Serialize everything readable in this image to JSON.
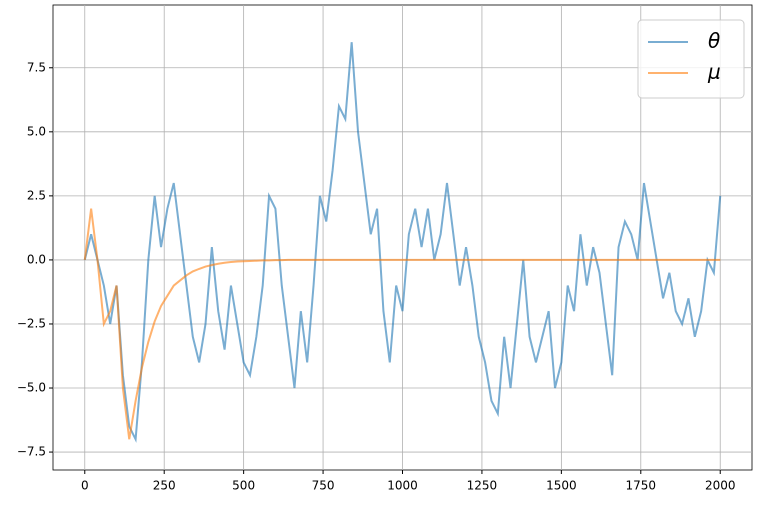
{
  "chart_data": {
    "type": "line",
    "x": [
      0,
      20,
      40,
      60,
      80,
      100,
      120,
      140,
      160,
      180,
      200,
      220,
      240,
      260,
      280,
      300,
      320,
      340,
      360,
      380,
      400,
      420,
      440,
      460,
      480,
      500,
      520,
      540,
      560,
      580,
      600,
      620,
      640,
      660,
      680,
      700,
      720,
      740,
      760,
      780,
      800,
      820,
      840,
      860,
      880,
      900,
      920,
      940,
      960,
      980,
      1000,
      1020,
      1040,
      1060,
      1080,
      1100,
      1120,
      1140,
      1160,
      1180,
      1200,
      1220,
      1240,
      1260,
      1280,
      1300,
      1320,
      1340,
      1360,
      1380,
      1400,
      1420,
      1440,
      1460,
      1480,
      1500,
      1520,
      1540,
      1560,
      1580,
      1600,
      1620,
      1640,
      1660,
      1680,
      1700,
      1720,
      1740,
      1760,
      1780,
      1800,
      1820,
      1840,
      1860,
      1880,
      1900,
      1920,
      1940,
      1960,
      1980,
      2000
    ],
    "series": [
      {
        "name": "θ",
        "color": "#1f77b4",
        "values": [
          0,
          1,
          0,
          -1,
          -2.5,
          -1,
          -4.5,
          -6.5,
          -7,
          -4,
          0,
          2.5,
          0.5,
          2,
          3,
          1,
          -1,
          -3,
          -4,
          -2.5,
          0.5,
          -2,
          -3.5,
          -1,
          -2.5,
          -4,
          -4.5,
          -3,
          -1,
          2.5,
          2,
          -1,
          -3,
          -5,
          -2,
          -4,
          -1,
          2.5,
          1.5,
          3.5,
          6,
          5.5,
          8.5,
          5,
          3,
          1,
          2,
          -2,
          -4,
          -1,
          -2,
          1,
          2,
          0.5,
          2,
          0,
          1,
          3,
          1,
          -1,
          0.5,
          -1,
          -3,
          -4,
          -5.5,
          -6,
          -3,
          -5,
          -2.5,
          0,
          -3,
          -4,
          -3,
          -2,
          -5,
          -4,
          -1,
          -2,
          1,
          -1,
          0.5,
          -0.5,
          -2.5,
          -4.5,
          0.5,
          1.5,
          1,
          0,
          3,
          1.5,
          0,
          -1.5,
          -0.5,
          -2,
          -2.5,
          -1.5,
          -3,
          -2,
          0,
          -0.5,
          2.5
        ]
      },
      {
        "name": "μ",
        "color": "#ff7f0e",
        "values": [
          0,
          2,
          0,
          -2.5,
          -2,
          -1,
          -5,
          -7,
          -5.5,
          -4.2,
          -3.2,
          -2.4,
          -1.8,
          -1.4,
          -1.0,
          -0.8,
          -0.6,
          -0.45,
          -0.35,
          -0.26,
          -0.2,
          -0.15,
          -0.11,
          -0.08,
          -0.06,
          -0.05,
          -0.04,
          -0.03,
          -0.02,
          -0.02,
          -0.01,
          -0.01,
          0,
          0,
          0,
          0,
          0,
          0,
          0,
          0,
          0,
          0,
          0,
          0,
          0,
          0,
          0,
          0,
          0,
          0,
          0,
          0,
          0,
          0,
          0,
          0,
          0,
          0,
          0,
          0,
          0,
          0,
          0,
          0,
          0,
          0,
          0,
          0,
          0,
          0,
          0,
          0,
          0,
          0,
          0,
          0,
          0,
          0,
          0,
          0,
          0,
          0,
          0,
          0,
          0,
          0,
          0,
          0,
          0,
          0,
          0,
          0,
          0,
          0,
          0,
          0,
          0,
          0,
          0,
          0,
          0
        ]
      }
    ],
    "xlim": [
      -100,
      2100
    ],
    "xticks": [
      0,
      250,
      500,
      750,
      1000,
      1250,
      1500,
      1750,
      2000
    ],
    "ylim": [
      -8.2,
      9.95
    ],
    "yticks": [
      {
        "value": -7.5,
        "label": "−7.5"
      },
      {
        "value": -5,
        "label": "−5.0"
      },
      {
        "value": -2.5,
        "label": "−2.5"
      },
      {
        "value": 0,
        "label": "0.0"
      },
      {
        "value": 2.5,
        "label": "2.5"
      },
      {
        "value": 5,
        "label": "5.0"
      },
      {
        "value": 7.5,
        "label": "7.5"
      }
    ],
    "grid": true,
    "legend": "upper right"
  }
}
